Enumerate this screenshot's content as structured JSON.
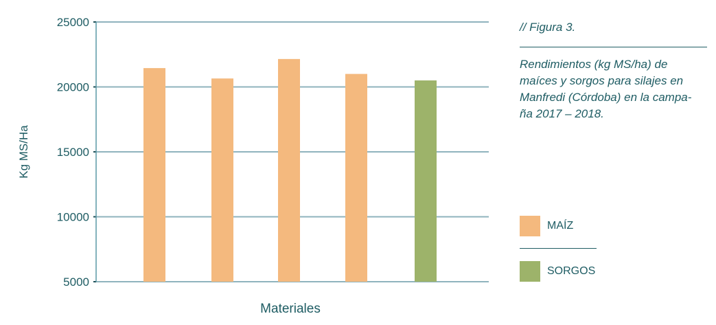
{
  "figure_label": "// Figura 3.",
  "caption": "Rendimientos (kg MS/ha) de\nmaíces y sorgos para silajes en\nManfredi (Córdoba) en la campa-\nña 2017 – 2018.",
  "colors": {
    "maiz": "#f4b97e",
    "sorgos": "#9db36a",
    "grid": "#8fb3bd",
    "text": "#1e5c63"
  },
  "chart_data": {
    "type": "bar",
    "categories": [
      "",
      "",
      "",
      "",
      ""
    ],
    "values": [
      21450,
      20650,
      22150,
      21000,
      20500
    ],
    "series_of_bar": [
      "MAÍZ",
      "MAÍZ",
      "MAÍZ",
      "MAÍZ",
      "SORGOS"
    ],
    "xlabel": "Materiales",
    "ylabel": "Kg MS/Ha",
    "ylim": [
      5000,
      25000
    ],
    "yticks": [
      "5000",
      "10000",
      "15000",
      "20000",
      "25000"
    ],
    "grid": true,
    "legend": {
      "placement": "right",
      "entries": [
        {
          "name": "MAÍZ",
          "color": "#f4b97e"
        },
        {
          "name": "SORGOS",
          "color": "#9db36a"
        }
      ]
    }
  }
}
